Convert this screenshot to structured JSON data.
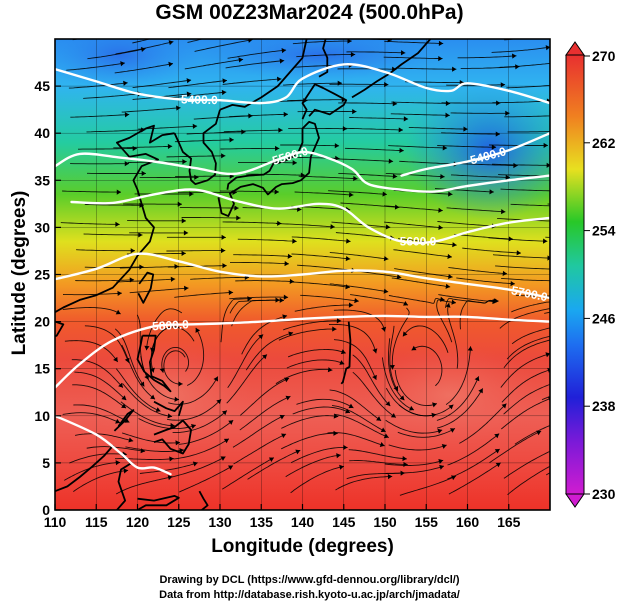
{
  "title": "GSM 00Z23Mar2024 (500.0hPa)",
  "credits": {
    "line1": "Drawing by DCL (https://www.gfd-dennou.org/library/dcl/)",
    "line2": "Data from http://database.rish.kyoto-u.ac.jp/arch/jmadata/"
  },
  "chart_data": {
    "type": "heatmap",
    "title": "GSM 00Z23Mar2024 (500.0hPa)",
    "xlabel": "Longitude (degrees)",
    "ylabel": "Latitude  (degrees)",
    "xlim": [
      110,
      170
    ],
    "ylim": [
      0,
      50
    ],
    "x_ticks": [
      110,
      115,
      120,
      125,
      130,
      135,
      140,
      145,
      150,
      155,
      160,
      165
    ],
    "y_ticks": [
      0,
      5,
      10,
      15,
      20,
      25,
      30,
      35,
      40,
      45
    ],
    "grid": true,
    "fill_variable_range": [
      230,
      270
    ],
    "colorbar": {
      "ticks": [
        230,
        238,
        246,
        254,
        262,
        270
      ],
      "colors": [
        "#d01cd0",
        "#2020d8",
        "#1aa0f0",
        "#20c8a0",
        "#28c828",
        "#e8e020",
        "#f08020",
        "#e83030"
      ]
    },
    "contours": [
      {
        "label": "5400.0",
        "points": [
          [
            110,
            46.8
          ],
          [
            115,
            45.5
          ],
          [
            120,
            44.2
          ],
          [
            125,
            43.6
          ],
          [
            130,
            43.5
          ],
          [
            135,
            43.2
          ],
          [
            138,
            43.8
          ],
          [
            140,
            45.8
          ],
          [
            145,
            47.3
          ],
          [
            150,
            46.5
          ],
          [
            155,
            44.8
          ],
          [
            158,
            44.5
          ],
          [
            160,
            45.3
          ],
          [
            165,
            44.5
          ],
          [
            170,
            43.2
          ]
        ]
      },
      {
        "label": "5400.0",
        "points": [
          [
            152,
            35.5
          ],
          [
            155,
            36.2
          ],
          [
            160,
            37.0
          ],
          [
            165,
            38.2
          ],
          [
            170,
            40.0
          ]
        ]
      },
      {
        "label": "5500.0",
        "points": [
          [
            110,
            36.5
          ],
          [
            113,
            37.8
          ],
          [
            118,
            37.4
          ],
          [
            122,
            37.0
          ],
          [
            127,
            36.3
          ],
          [
            132,
            35.7
          ],
          [
            137,
            37.2
          ],
          [
            140,
            38.0
          ],
          [
            143,
            37.4
          ],
          [
            146,
            36.2
          ],
          [
            148,
            34.6
          ],
          [
            152,
            34.0
          ],
          [
            156,
            33.8
          ],
          [
            160,
            34.4
          ],
          [
            165,
            35.0
          ],
          [
            170,
            35.5
          ]
        ]
      },
      {
        "label": "5600.0",
        "points": [
          [
            112,
            32.7
          ],
          [
            117,
            32.6
          ],
          [
            122,
            33.5
          ],
          [
            127,
            34.0
          ],
          [
            132,
            32.8
          ],
          [
            137,
            32.0
          ],
          [
            142,
            32.5
          ],
          [
            145,
            32.0
          ],
          [
            148,
            30.0
          ],
          [
            152,
            28.5
          ],
          [
            156,
            28.5
          ],
          [
            160,
            29.5
          ],
          [
            165,
            30.5
          ],
          [
            170,
            31.0
          ]
        ]
      },
      {
        "label": "5700.0",
        "points": [
          [
            110,
            24.5
          ],
          [
            115,
            25.6
          ],
          [
            120,
            27.2
          ],
          [
            125,
            26.4
          ],
          [
            130,
            25.3
          ],
          [
            135,
            24.8
          ],
          [
            140,
            25.0
          ],
          [
            145,
            25.4
          ],
          [
            150,
            25.3
          ],
          [
            155,
            24.6
          ],
          [
            160,
            24.0
          ],
          [
            165,
            23.4
          ],
          [
            170,
            22.5
          ]
        ]
      },
      {
        "label": "5800.0",
        "points": [
          [
            110,
            13.0
          ],
          [
            113,
            15.5
          ],
          [
            117,
            18.0
          ],
          [
            122,
            19.5
          ],
          [
            126,
            19.7
          ],
          [
            130,
            19.8
          ],
          [
            135,
            20.0
          ],
          [
            140,
            20.3
          ],
          [
            145,
            20.5
          ],
          [
            150,
            20.6
          ],
          [
            155,
            20.5
          ],
          [
            160,
            20.5
          ],
          [
            165,
            20.2
          ],
          [
            170,
            20.0
          ]
        ]
      },
      {
        "label": "5800.0",
        "points": [
          [
            110,
            10.0
          ],
          [
            115,
            8.0
          ],
          [
            118,
            6.0
          ],
          [
            120,
            4.5
          ],
          [
            122,
            4.5
          ],
          [
            124,
            3.8
          ]
        ]
      }
    ],
    "wind_streamlines": "westerly flow, strongest between 25N and 45N"
  }
}
